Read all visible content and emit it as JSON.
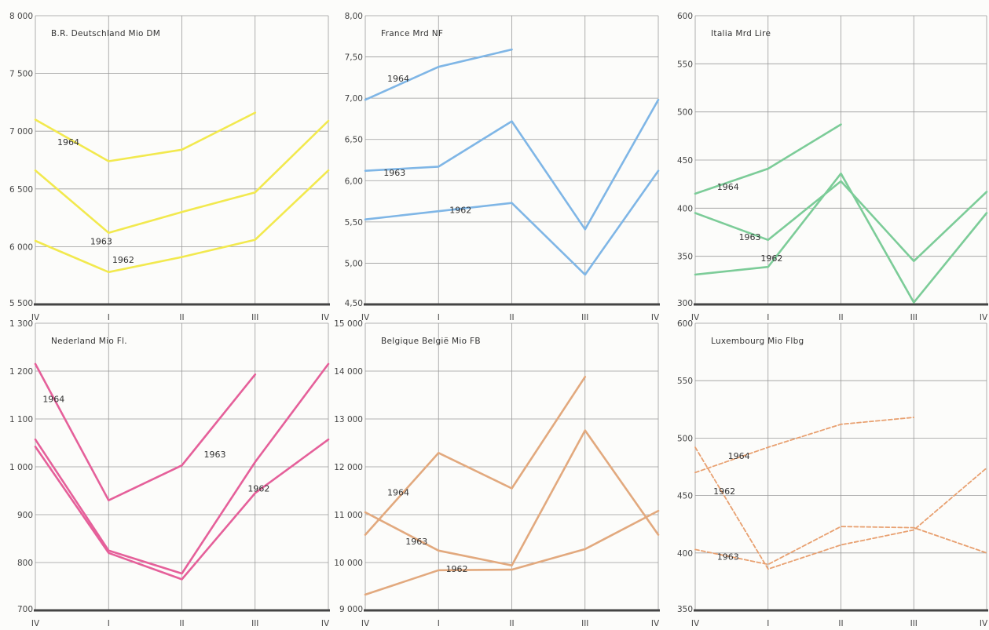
{
  "x_labels": [
    "IV",
    "I",
    "II",
    "III",
    "IV"
  ],
  "chart_data": [
    {
      "type": "line",
      "title": "B.R. Deutschland Mio DM",
      "color": "#f2e94e",
      "ylim": [
        5500,
        8000
      ],
      "yticks": [
        5500,
        6000,
        6500,
        7000,
        7500,
        8000
      ],
      "ytick_labels": [
        "5 500",
        "6 000",
        "6 500",
        "7 000",
        "7 500",
        "8 000"
      ],
      "categories": [
        "IV",
        "I",
        "II",
        "III",
        "IV"
      ],
      "series": [
        {
          "name": "1964",
          "values": [
            7100,
            6740,
            6840,
            7160,
            null
          ],
          "label_at": [
            0.45,
            6880
          ]
        },
        {
          "name": "1963",
          "values": [
            6660,
            6120,
            6300,
            6470,
            7090
          ],
          "label_at": [
            0.9,
            6020
          ]
        },
        {
          "name": "1962",
          "values": [
            6050,
            5780,
            5910,
            6060,
            6660
          ],
          "label_at": [
            1.2,
            5860
          ]
        }
      ]
    },
    {
      "type": "line",
      "title": "France Mrd NF",
      "color": "#7fb6e6",
      "ylim": [
        4.5,
        8.0
      ],
      "yticks": [
        4.5,
        5.0,
        5.5,
        6.0,
        6.5,
        7.0,
        7.5,
        8.0
      ],
      "ytick_labels": [
        "4,50",
        "5,00",
        "5,50",
        "6,00",
        "6,50",
        "7,00",
        "7,50",
        "8,00"
      ],
      "categories": [
        "IV",
        "I",
        "II",
        "III",
        "IV"
      ],
      "series": [
        {
          "name": "1964",
          "values": [
            6.98,
            7.38,
            7.59,
            null,
            null
          ],
          "label_at": [
            0.45,
            7.2
          ]
        },
        {
          "name": "1963",
          "values": [
            6.12,
            6.17,
            6.72,
            5.41,
            6.98
          ],
          "label_at": [
            0.4,
            6.06
          ]
        },
        {
          "name": "1962",
          "values": [
            5.53,
            5.63,
            5.73,
            4.86,
            6.12
          ],
          "label_at": [
            1.3,
            5.61
          ]
        }
      ]
    },
    {
      "type": "line",
      "title": "Italia Mrd Lire",
      "color": "#7ccc98",
      "ylim": [
        300,
        600
      ],
      "yticks": [
        300,
        350,
        400,
        450,
        500,
        550,
        600
      ],
      "ytick_labels": [
        "300",
        "350",
        "400",
        "450",
        "500",
        "550",
        "600"
      ],
      "categories": [
        "IV",
        "I",
        "II",
        "III",
        "IV"
      ],
      "series": [
        {
          "name": "1964",
          "values": [
            415,
            441,
            487,
            null,
            null
          ],
          "label_at": [
            0.45,
            419
          ]
        },
        {
          "name": "1963",
          "values": [
            395,
            367,
            428,
            345,
            417
          ],
          "label_at": [
            0.75,
            367
          ]
        },
        {
          "name": "1962",
          "values": [
            331,
            339,
            436,
            302,
            395
          ],
          "label_at": [
            1.05,
            345
          ]
        }
      ]
    },
    {
      "type": "line",
      "title": "Nederland Mio Fl.",
      "color": "#e5609a",
      "ylim": [
        700,
        1300
      ],
      "yticks": [
        700,
        800,
        900,
        1000,
        1100,
        1200,
        1300
      ],
      "ytick_labels": [
        "700",
        "800",
        "900",
        "1 000",
        "1 100",
        "1 200",
        "1 300"
      ],
      "categories": [
        "IV",
        "I",
        "II",
        "III",
        "IV"
      ],
      "series": [
        {
          "name": "1964",
          "values": [
            1215,
            930,
            1003,
            1193,
            null
          ],
          "label_at": [
            0.25,
            1135
          ]
        },
        {
          "name": "1963",
          "values": [
            1057,
            825,
            777,
            1010,
            1215
          ],
          "label_at": [
            2.45,
            1020
          ]
        },
        {
          "name": "1962",
          "values": [
            1042,
            820,
            765,
            945,
            1057
          ],
          "label_at": [
            3.05,
            948
          ]
        }
      ]
    },
    {
      "type": "line",
      "title": "Belgique België Mio FB",
      "color": "#e2a97e",
      "ylim": [
        9000,
        15000
      ],
      "yticks": [
        9000,
        10000,
        11000,
        12000,
        13000,
        14000,
        15000
      ],
      "ytick_labels": [
        "9 000",
        "10 000",
        "11 000",
        "12 000",
        "13 000",
        "14 000",
        "15 000"
      ],
      "categories": [
        "IV",
        "I",
        "II",
        "III",
        "IV"
      ],
      "series": [
        {
          "name": "1964",
          "values": [
            10580,
            12290,
            11550,
            13880,
            null
          ],
          "label_at": [
            0.45,
            11400
          ]
        },
        {
          "name": "1963",
          "values": [
            11050,
            10250,
            9940,
            12760,
            10580
          ],
          "label_at": [
            0.7,
            10380
          ]
        },
        {
          "name": "1962",
          "values": [
            9330,
            9840,
            9850,
            10280,
            11080
          ],
          "label_at": [
            1.25,
            9800
          ]
        }
      ]
    },
    {
      "type": "line",
      "title": "Luxembourg Mio Flbg",
      "color": "#e8a070",
      "dashed": true,
      "ylim": [
        350,
        600
      ],
      "yticks": [
        350,
        400,
        450,
        500,
        550,
        600
      ],
      "ytick_labels": [
        "350",
        "400",
        "450",
        "500",
        "550",
        "600"
      ],
      "categories": [
        "IV",
        "I",
        "II",
        "III",
        "IV"
      ],
      "series": [
        {
          "name": "1964",
          "values": [
            470,
            492,
            512,
            518,
            null
          ],
          "label_at": [
            0.6,
            482
          ]
        },
        {
          "name": "1963",
          "values": [
            403,
            390,
            423,
            422,
            400
          ],
          "label_at": [
            0.45,
            394
          ]
        },
        {
          "name": "1962",
          "values": [
            492,
            386,
            407,
            420,
            474
          ],
          "label_at": [
            0.4,
            451
          ]
        }
      ]
    }
  ]
}
